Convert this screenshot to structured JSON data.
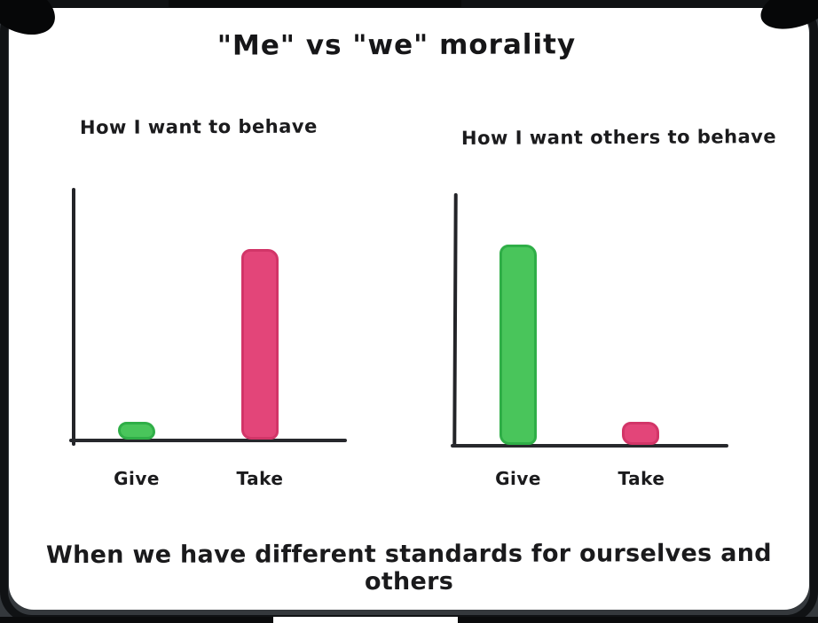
{
  "comic": {
    "title": "\"Me\" vs \"we\" morality",
    "caption": "When we have different standards for ourselves and others"
  },
  "colors": {
    "page_background": "#34383c",
    "card_background": "#ffffff",
    "frame_ink": "#101214",
    "axis_ink": "#232428",
    "text_ink": "#1b1b1d",
    "give_green": "#49c55b",
    "give_green_border": "#2fae47",
    "take_pink": "#e34579",
    "take_pink_border": "#d23568"
  },
  "chart_data": [
    {
      "type": "bar",
      "title": "How I want to behave",
      "categories": [
        "Give",
        "Take"
      ],
      "values": [
        0.07,
        0.74
      ],
      "bar_colors": [
        "#49c55b",
        "#e34579"
      ],
      "bar_border_colors": [
        "#2fae47",
        "#d23568"
      ],
      "xlabel": "",
      "ylabel": "",
      "ylim": [
        0,
        1
      ],
      "grid": false,
      "legend": false,
      "note": "hand-drawn bar chart, no numeric scale shown; values are relative bar heights"
    },
    {
      "type": "bar",
      "title": "How I want others to behave",
      "categories": [
        "Give",
        "Take"
      ],
      "values": [
        0.78,
        0.09
      ],
      "bar_colors": [
        "#49c55b",
        "#e34579"
      ],
      "bar_border_colors": [
        "#2fae47",
        "#d23568"
      ],
      "xlabel": "",
      "ylabel": "",
      "ylim": [
        0,
        1
      ],
      "grid": false,
      "legend": false,
      "note": "hand-drawn bar chart, no numeric scale shown; values are relative bar heights"
    }
  ]
}
